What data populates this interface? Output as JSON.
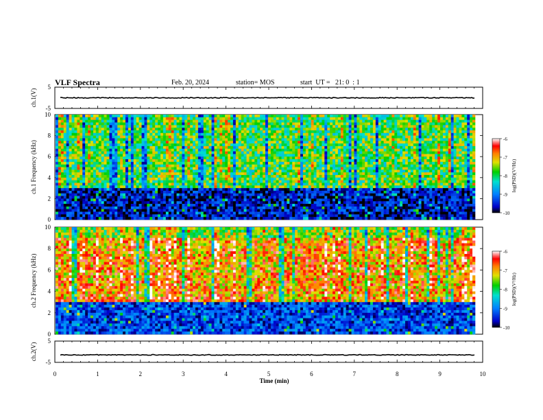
{
  "header": {
    "title": "VLF Spectra",
    "date": "Feb. 20, 2024",
    "station": "station= MOS",
    "start": "start  UT =   21: 0  : 1"
  },
  "chart_data": [
    {
      "type": "line",
      "panel": "ch1-amplitude",
      "ylabel": "ch.1(V)",
      "ylim": [
        -5,
        5
      ],
      "yticks": [
        "5",
        "-5"
      ],
      "xlim": [
        0,
        10
      ],
      "series": [
        {
          "values_note": "",
          "level": 0
        }
      ]
    },
    {
      "type": "heatmap",
      "panel": "ch1-spectrogram",
      "ylabel": "ch.1 Frequency (kHz)",
      "ylim": [
        0,
        10
      ],
      "yticks": [
        "0",
        "2",
        "4",
        "6",
        "8",
        "10"
      ],
      "xlim": [
        0,
        10
      ],
      "colorbar": {
        "label": "log(PSD)(V²/Hz)",
        "range": [
          -10,
          -6
        ],
        "ticks": [
          "-6",
          "-7",
          "-8",
          "-9",
          "-10"
        ]
      },
      "band_low_kHz": 3,
      "band_high_kHz": 10,
      "typical_log_psd_band": -7.8,
      "typical_log_psd_low": -9.6
    },
    {
      "type": "heatmap",
      "panel": "ch2-spectrogram",
      "ylabel": "ch.2 Frequency (kHz)",
      "ylim": [
        0,
        10
      ],
      "yticks": [
        "0",
        "2",
        "4",
        "6",
        "8",
        "10"
      ],
      "xlim": [
        0,
        10
      ],
      "colorbar": {
        "label": "log(PSD)(V²/Hz)",
        "range": [
          -10,
          -6
        ],
        "ticks": [
          "-6",
          "-7",
          "-8",
          "-9",
          "-10"
        ]
      },
      "band_low_kHz": 3,
      "band_high_kHz": 9,
      "typical_log_psd_band": -6.9,
      "typical_log_psd_low": -9.3
    },
    {
      "type": "line",
      "panel": "ch2-amplitude",
      "ylabel": "ch.2(V)",
      "ylim": [
        -5,
        5
      ],
      "yticks": [
        "5",
        "-5"
      ],
      "xlim": [
        0,
        10
      ],
      "series": [
        {
          "level": -1.5
        }
      ]
    }
  ],
  "xaxis": {
    "label": "Time  (min)",
    "ticks": [
      "0",
      "1",
      "2",
      "3",
      "4",
      "5",
      "6",
      "7",
      "8",
      "9",
      "10"
    ]
  }
}
